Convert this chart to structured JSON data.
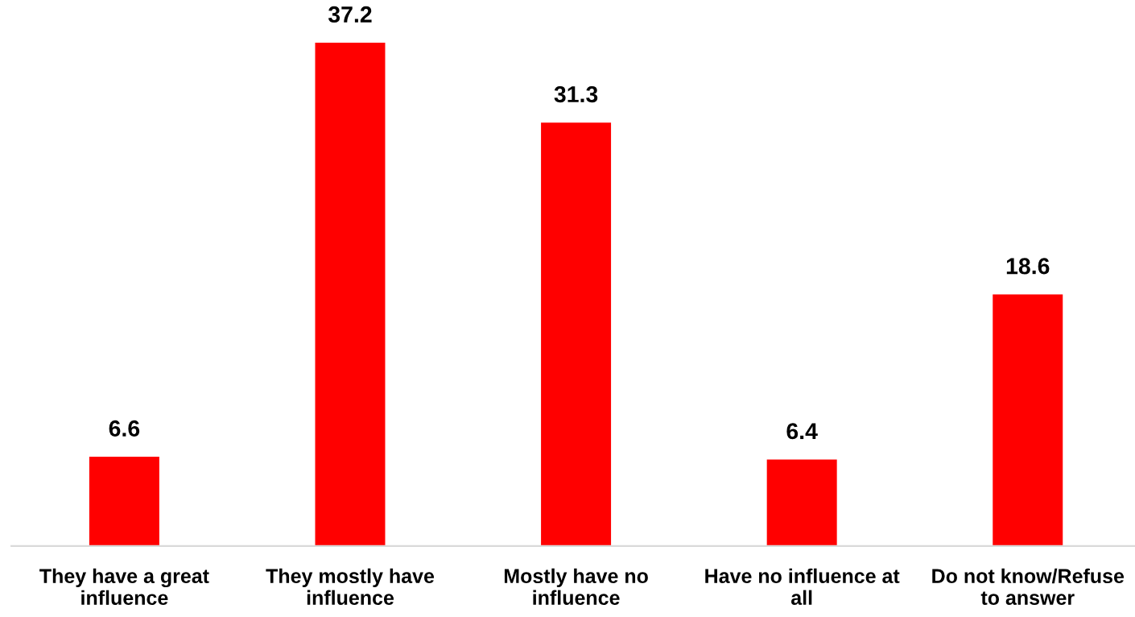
{
  "chart_data": {
    "type": "bar",
    "categories": [
      "They have a great influence",
      "They mostly have influence",
      "Mostly have no influence",
      "Have no influence at all",
      "Do not know/Refuse to answer"
    ],
    "values": [
      6.6,
      37.2,
      31.3,
      6.4,
      18.6
    ],
    "color": "#ff0000",
    "data_labels": true,
    "grid": false,
    "legend": false
  }
}
